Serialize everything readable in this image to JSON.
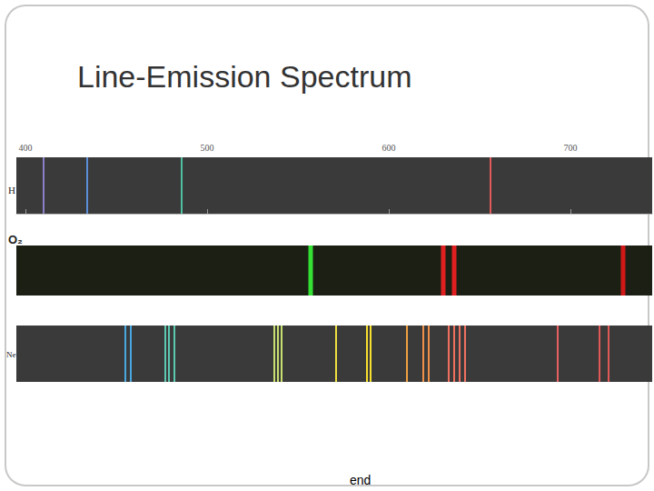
{
  "title": "Line-Emission Spectrum",
  "footer": "end",
  "chart_data": [
    {
      "type": "spectrum",
      "title": "H",
      "x": [
        410,
        434,
        486,
        656
      ],
      "colors": [
        "#8a7fc8",
        "#5b8fd8",
        "#4fc0a0",
        "#e05a5a"
      ],
      "xlim": [
        395,
        745
      ],
      "xticks": [
        400,
        500,
        600,
        700
      ],
      "tick_labels": "x"
    },
    {
      "type": "spectrum",
      "title": "O₂",
      "x": [
        557,
        630,
        636,
        729
      ],
      "colors": [
        "#33e033",
        "#e02020",
        "#e02020",
        "#d01818"
      ],
      "xlim": [
        395,
        745
      ],
      "tick_labels": false
    },
    {
      "type": "spectrum",
      "title": "Ne",
      "x": [
        455,
        458,
        477,
        479,
        482,
        537,
        539,
        541,
        571,
        588,
        590,
        610,
        619,
        622,
        633,
        636,
        639,
        642,
        693,
        716,
        721
      ],
      "colors": [
        "#4aa8e0",
        "#4aa8e0",
        "#5cc8b0",
        "#5cc8b0",
        "#5cc8b0",
        "#c8e070",
        "#c8e070",
        "#c8e070",
        "#f0e040",
        "#f8e030",
        "#f8e030",
        "#f0a040",
        "#f09048",
        "#f09048",
        "#f07060",
        "#f07060",
        "#f07060",
        "#f07060",
        "#e86060",
        "#e05858",
        "#e05858"
      ],
      "xlim": [
        395,
        745
      ],
      "tick_labels": false
    }
  ]
}
